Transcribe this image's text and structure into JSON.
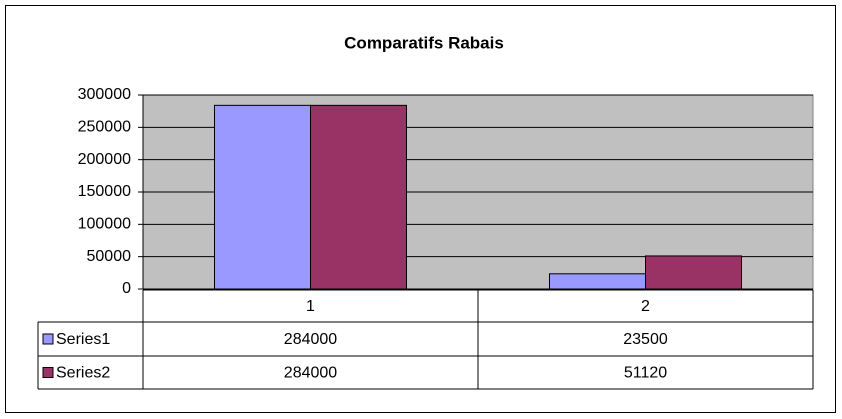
{
  "chart_data": {
    "type": "bar",
    "title": "Comparatifs Rabais",
    "categories": [
      "1",
      "2"
    ],
    "series": [
      {
        "name": "Series1",
        "color": "#9999ff",
        "values": [
          284000,
          23500
        ]
      },
      {
        "name": "Series2",
        "color": "#993366",
        "values": [
          284000,
          51120
        ]
      }
    ],
    "ylim": [
      0,
      300000
    ],
    "yticks": [
      0,
      50000,
      100000,
      150000,
      200000,
      250000,
      300000
    ],
    "grid": true
  }
}
